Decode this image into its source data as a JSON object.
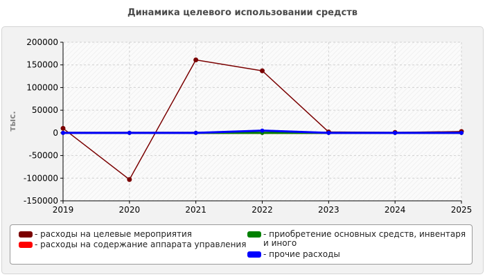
{
  "chart_data": {
    "type": "line",
    "title": "Динамика целевого использовании средств",
    "ylabel": "тыс.",
    "xlabel": "",
    "x": [
      "2019",
      "2020",
      "2021",
      "2022",
      "2023",
      "2024",
      "2025"
    ],
    "ylim": [
      -150000,
      200000
    ],
    "yticks": [
      200000,
      150000,
      100000,
      50000,
      0,
      -50000,
      -100000,
      -150000
    ],
    "grid": true,
    "legend_position": "bottom",
    "series": [
      {
        "name": "- расходы на целевые мероприятия",
        "color": "#7a0000",
        "values": [
          10000,
          -103000,
          161000,
          137000,
          2000,
          1000,
          3000
        ]
      },
      {
        "name": "- расходы на содержание аппарата управления",
        "color": "#ff0000",
        "values": [
          0,
          0,
          0,
          0,
          0,
          0,
          0
        ]
      },
      {
        "name": "- приобретение основных средств, инвентаря и иного",
        "color": "#008000",
        "values": [
          0,
          0,
          0,
          0,
          0,
          0,
          0
        ]
      },
      {
        "name": "- прочие расходы",
        "color": "#0000ff",
        "values": [
          0,
          0,
          0,
          5000,
          0,
          0,
          0
        ]
      }
    ]
  }
}
